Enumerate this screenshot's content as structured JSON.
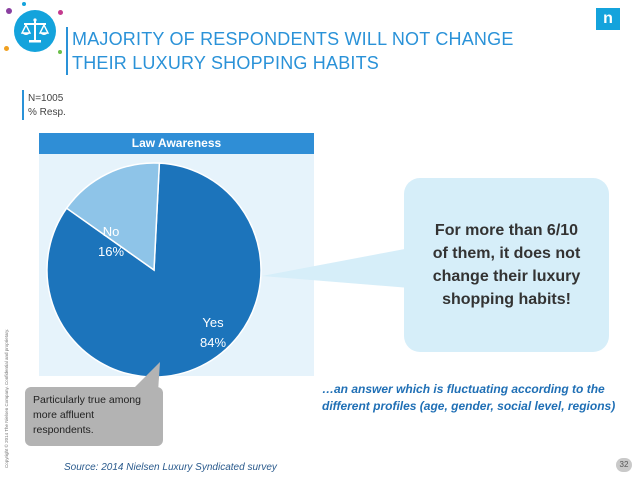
{
  "header": {
    "title": "MAJORITY OF RESPONDENTS WILL NOT CHANGE THEIR LUXURY SHOPPING HABITS",
    "brand_letter": "n"
  },
  "sample": {
    "n_label": "N=1005",
    "unit_label": "% Resp."
  },
  "copyright": "Copyright © 2014 The Nielsen Company. Confidential and proprietary.",
  "chart_data": {
    "type": "pie",
    "title": "Law Awareness",
    "categories": [
      "Yes",
      "No"
    ],
    "values": [
      84,
      16
    ],
    "value_labels": [
      "84%",
      "16%"
    ],
    "colors": [
      "#1c74bb",
      "#8ec4e8"
    ]
  },
  "callouts": {
    "main": "For more than 6/10 of them, it does not change their luxury shopping habits!",
    "small": "Particularly true among more affluent respondents.",
    "note": "…an answer which is fluctuating  according to the different profiles (age, gender, social level, regions)"
  },
  "footer": {
    "source": "Source: 2014 Nielsen Luxury Syndicated survey",
    "page_number": "32"
  },
  "colors": {
    "accent": "#2a92d8",
    "callout_bg": "#d6eef9",
    "chart_bg": "#e6f3fb"
  }
}
